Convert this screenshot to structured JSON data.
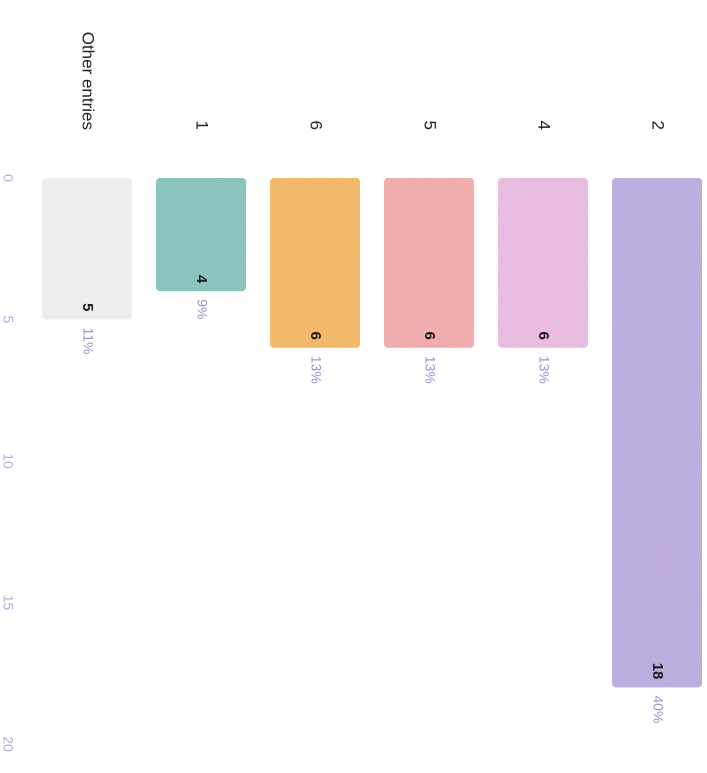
{
  "chart_data": {
    "type": "bar",
    "orientation": "horizontal",
    "categories": [
      "2",
      "4",
      "5",
      "6",
      "1",
      "Other entries"
    ],
    "values": [
      18,
      6,
      6,
      6,
      4,
      5
    ],
    "percent_labels": [
      "40%",
      "13%",
      "13%",
      "13%",
      "9%",
      "11%"
    ],
    "colors": [
      "#b7a7dc",
      "#e7b8df",
      "#f0a7a7",
      "#f2b457",
      "#7fc0b8",
      "#ececec"
    ],
    "x_ticks": [
      0,
      5,
      10,
      15,
      20
    ],
    "xlim": [
      0,
      20
    ],
    "grid": false,
    "title": "",
    "xlabel": "",
    "ylabel": ""
  }
}
